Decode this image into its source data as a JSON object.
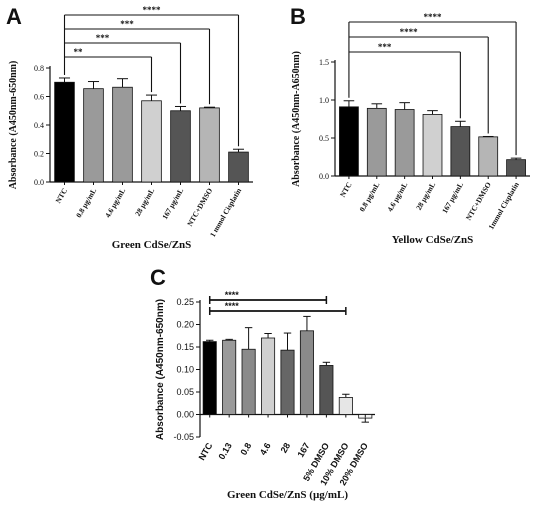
{
  "chart_data": [
    {
      "panel": "A",
      "type": "bar",
      "categories": [
        "NTC",
        "0.8 µg/mL",
        "4.6 µg/mL",
        "28 µg/mL",
        "167 µg/mL",
        "NTC+DMSO",
        "1 mmol Cisplatin"
      ],
      "values": [
        0.7,
        0.655,
        0.665,
        0.57,
        0.5,
        0.52,
        0.21
      ],
      "errors": [
        0.03,
        0.05,
        0.06,
        0.04,
        0.03,
        0.005,
        0.02
      ],
      "colors": [
        "#000000",
        "#9a9a9a",
        "#9a9a9a",
        "#d0d0d0",
        "#555555",
        "#b5b5b5",
        "#555555"
      ],
      "ylabel": "Absorbance (A450nm-650nm)",
      "xlabel": "Green CdSe/ZnS",
      "ylim": [
        0,
        0.8
      ],
      "yticks": [
        "0.0",
        "0.2",
        "0.4",
        "0.6",
        "0.8"
      ],
      "significance": [
        {
          "to": 3,
          "label": "**"
        },
        {
          "to": 4,
          "label": "***"
        },
        {
          "to": 5,
          "label": "***"
        },
        {
          "to": 6,
          "label": "****"
        }
      ]
    },
    {
      "panel": "B",
      "type": "bar",
      "categories": [
        "NTC",
        "0.8 µg/mL",
        "4.6 µg/mL",
        "28 µg/mL",
        "167 µg/mL",
        "NTC+DMSO",
        "1mmol Cisplatin"
      ],
      "values": [
        0.91,
        0.89,
        0.875,
        0.81,
        0.65,
        0.515,
        0.215
      ],
      "errors": [
        0.08,
        0.06,
        0.09,
        0.05,
        0.07,
        0.005,
        0.02
      ],
      "colors": [
        "#000000",
        "#9a9a9a",
        "#9a9a9a",
        "#d0d0d0",
        "#555555",
        "#b5b5b5",
        "#555555"
      ],
      "ylabel": "Absorbance (A450nm-A650nm)",
      "xlabel": "Yellow CdSe/ZnS",
      "ylim": [
        0,
        1.5
      ],
      "yticks": [
        "0.0",
        "0.5",
        "1.0",
        "1.5"
      ],
      "significance": [
        {
          "to": 4,
          "label": "***"
        },
        {
          "to": 5,
          "label": "****"
        },
        {
          "to": 6,
          "label": "****"
        }
      ]
    },
    {
      "panel": "C",
      "type": "bar",
      "categories": [
        "NTC",
        "0.13",
        "0.8",
        "4.6",
        "28",
        "167",
        "5% DMSO",
        "10% DMSO",
        "20% DMSO"
      ],
      "values": [
        0.162,
        0.165,
        0.145,
        0.17,
        0.143,
        0.186,
        0.109,
        0.038,
        -0.008
      ],
      "errors": [
        0.003,
        0.002,
        0.048,
        0.01,
        0.038,
        0.032,
        0.007,
        0.007,
        0.009
      ],
      "colors": [
        "#000000",
        "#9a9a9a",
        "#8a8a8a",
        "#d0d0d0",
        "#666666",
        "#8a8a8a",
        "#555555",
        "#e6e6e6",
        "#f5f5f5"
      ],
      "ylabel": "Absorbance  (A450nm-650nm)",
      "xlabel": "Green CdSe/ZnS (µg/mL)",
      "ylim": [
        -0.05,
        0.25
      ],
      "yticks": [
        "-0.05",
        "0.00",
        "0.05",
        "0.10",
        "0.15",
        "0.20",
        "0.25"
      ],
      "significance": [
        {
          "to": 6,
          "label": "****"
        },
        {
          "to": 7,
          "label": "****"
        }
      ]
    }
  ]
}
